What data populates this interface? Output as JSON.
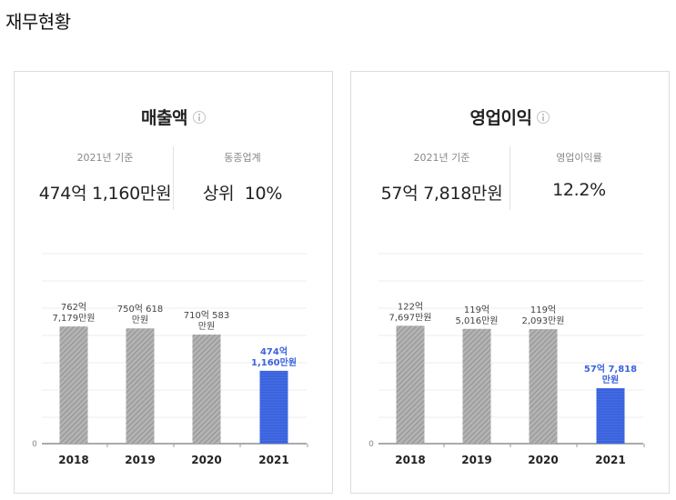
{
  "page": {
    "title": "재무현황"
  },
  "cards": [
    {
      "title": "매출액",
      "stat_left": {
        "label": "2021년 기준",
        "value": "474억 1,160만원"
      },
      "stat_right": {
        "label": "동종업계",
        "value": "상위  10%"
      }
    },
    {
      "title": "영업이익",
      "stat_left": {
        "label": "2021년 기준",
        "value": "57억 7,818만원"
      },
      "stat_right": {
        "label": "영업이익률",
        "value": "12.2%"
      }
    }
  ],
  "colors": {
    "highlight": "#3b63dc",
    "highlight_label": "#3b63dc",
    "bar_gray": "#9a9a9a"
  },
  "chart_data": [
    {
      "type": "bar",
      "title": "매출액",
      "categories": [
        "2018",
        "2019",
        "2020",
        "2021"
      ],
      "values": [
        762.7179,
        750.0618,
        710.0583,
        474.116
      ],
      "unit": "억원",
      "data_labels": [
        [
          "762억",
          "7,179만원"
        ],
        [
          "750억 618",
          "만원"
        ],
        [
          "710억 583",
          "만원"
        ],
        [
          "474억",
          "1,160만원"
        ]
      ],
      "highlight_index": 3,
      "ytick_labels": [
        "0"
      ],
      "ylim": [
        0,
        1000
      ]
    },
    {
      "type": "bar",
      "title": "영업이익",
      "categories": [
        "2018",
        "2019",
        "2020",
        "2021"
      ],
      "values": [
        122.7697,
        119.5016,
        119.2093,
        57.7818
      ],
      "unit": "억원",
      "data_labels": [
        [
          "122억",
          "7,697만원"
        ],
        [
          "119억",
          "5,016만원"
        ],
        [
          "119억",
          "2,093만원"
        ],
        [
          "57억 7,818",
          "만원"
        ]
      ],
      "highlight_index": 3,
      "ytick_labels": [
        "0"
      ],
      "ylim": [
        0,
        160
      ]
    }
  ]
}
